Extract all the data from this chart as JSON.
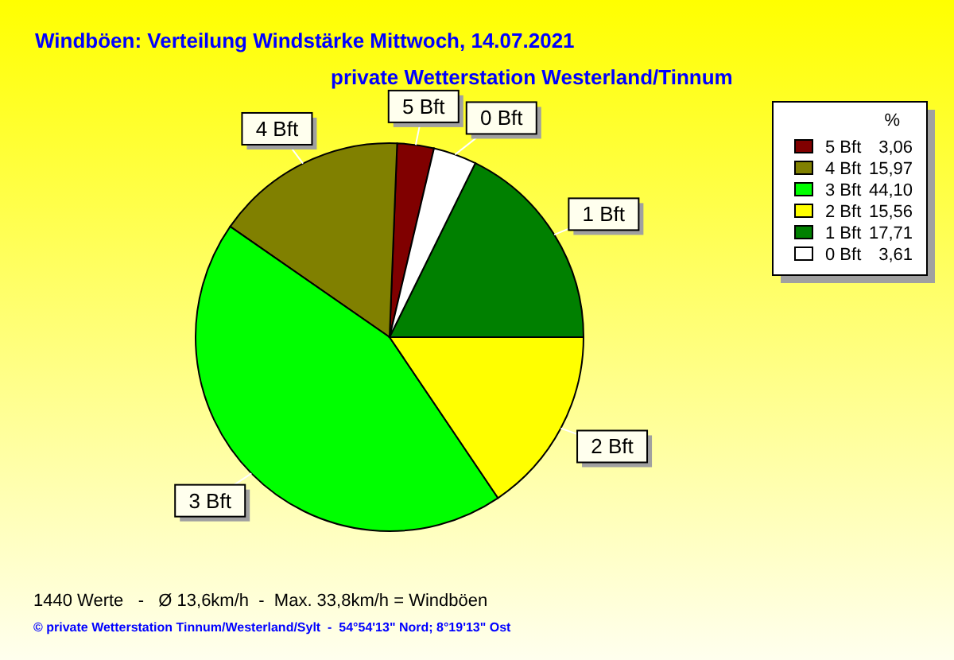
{
  "chart_data": {
    "type": "pie",
    "title": "Windböen: Verteilung Windstärke  Mittwoch, 14.07.2021",
    "subtitle": "private Wetterstation Westerland/Tinnum",
    "categories": [
      "5 Bft",
      "4 Bft",
      "3 Bft",
      "2 Bft",
      "1 Bft",
      "0 Bft"
    ],
    "values": [
      3.06,
      15.97,
      44.1,
      15.56,
      17.71,
      3.61
    ],
    "value_labels": [
      "3,06",
      "15,97",
      "44,10",
      "15,56",
      "17,71",
      "3,61"
    ],
    "colors": [
      "#800000",
      "#808000",
      "#00ff00",
      "#ffff00",
      "#008000",
      "#ffffff"
    ],
    "legend": "top right",
    "legend_title": "%",
    "annotations": [
      "1440 Werte   -   Ø 13,6km/h  -  Max. 33,8km/h = Windböen",
      "© private Wetterstation Tinnum/Westerland/Sylt  -  54°54'13\" Nord; 8°19'13\" Ost"
    ]
  }
}
